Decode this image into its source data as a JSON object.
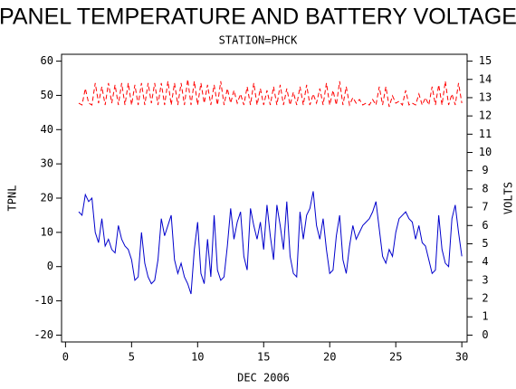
{
  "chart_data": {
    "type": "line",
    "title": "PANEL TEMPERATURE AND BATTERY VOLTAGE",
    "subtitle": "STATION=PHCK",
    "x_label": "DEC 2006",
    "y_label": "TPNL",
    "y2_label": "VOLTS",
    "xlim": [
      -0.3,
      30.4
    ],
    "xticks": [
      0,
      5,
      10,
      15,
      20,
      25,
      30
    ],
    "ylim": [
      -22,
      62
    ],
    "yticks": [
      -20,
      -10,
      0,
      10,
      20,
      30,
      40,
      50,
      60
    ],
    "y2lim": [
      -0.375,
      15.375
    ],
    "y2ticks": [
      0,
      1,
      2,
      3,
      4,
      5,
      6,
      7,
      8,
      9,
      10,
      11,
      12,
      13,
      14,
      15
    ],
    "x": [
      1,
      1.25,
      1.5,
      1.75,
      2,
      2.25,
      2.5,
      2.75,
      3,
      3.25,
      3.5,
      3.75,
      4,
      4.25,
      4.5,
      4.75,
      5,
      5.25,
      5.5,
      5.75,
      6,
      6.25,
      6.5,
      6.75,
      7,
      7.25,
      7.5,
      7.75,
      8,
      8.25,
      8.5,
      8.75,
      9,
      9.25,
      9.5,
      9.75,
      10,
      10.25,
      10.5,
      10.75,
      11,
      11.25,
      11.5,
      11.75,
      12,
      12.25,
      12.5,
      12.75,
      13,
      13.25,
      13.5,
      13.75,
      14,
      14.25,
      14.5,
      14.75,
      15,
      15.25,
      15.5,
      15.75,
      16,
      16.25,
      16.5,
      16.75,
      17,
      17.25,
      17.5,
      17.75,
      18,
      18.25,
      18.5,
      18.75,
      19,
      19.25,
      19.5,
      19.75,
      20,
      20.25,
      20.5,
      20.75,
      21,
      21.25,
      21.5,
      21.75,
      22,
      22.25,
      22.5,
      22.75,
      23,
      23.25,
      23.5,
      23.75,
      24,
      24.25,
      24.5,
      24.75,
      25,
      25.25,
      25.5,
      25.75,
      26,
      26.25,
      26.5,
      26.75,
      27,
      27.25,
      27.5,
      27.75,
      28,
      28.25,
      28.5,
      28.75,
      29,
      29.25,
      29.5,
      29.75,
      30
    ],
    "series": [
      {
        "color": "#0000cc",
        "axis": "y",
        "dash": false,
        "values": [
          16,
          15,
          21,
          19,
          20,
          10,
          7,
          14,
          6,
          8,
          5,
          4,
          12,
          8,
          6,
          5,
          2,
          -4,
          -3,
          10,
          1,
          -3,
          -5,
          -4,
          2,
          14,
          9,
          12,
          15,
          2,
          -2,
          1,
          -3,
          -5,
          -8,
          5,
          13,
          -2,
          -5,
          8,
          -3,
          15,
          -1,
          -4,
          -3,
          6,
          17,
          8,
          13,
          16,
          3,
          -1,
          17,
          12,
          8,
          13,
          5,
          18,
          9,
          2,
          18,
          12,
          5,
          19,
          3,
          -2,
          -3,
          16,
          8,
          15,
          17,
          22,
          12,
          8,
          14,
          5,
          -2,
          -1,
          9,
          15,
          2,
          -2,
          6,
          12,
          8,
          10,
          12,
          13,
          14,
          16,
          19,
          11,
          3,
          1,
          5,
          3,
          10,
          14,
          15,
          16,
          14,
          13,
          8,
          12,
          7,
          6,
          2,
          -2,
          -1,
          15,
          5,
          1,
          0,
          14,
          18,
          10,
          3
        ]
      },
      {
        "color": "#ff0000",
        "axis": "y2",
        "dash": true,
        "values": [
          12.7,
          12.6,
          13.5,
          12.7,
          12.6,
          13.8,
          12.7,
          13.6,
          12.6,
          13.8,
          12.7,
          13.7,
          12.6,
          13.8,
          12.6,
          13.8,
          12.6,
          13.7,
          12.6,
          13.8,
          12.6,
          13.8,
          12.7,
          13.8,
          12.6,
          13.8,
          12.6,
          13.9,
          12.6,
          13.8,
          12.6,
          13.8,
          12.6,
          14.0,
          12.6,
          13.9,
          12.6,
          13.8,
          12.7,
          13.7,
          12.6,
          13.7,
          12.6,
          13.9,
          12.6,
          13.5,
          12.7,
          13.4,
          12.7,
          13.2,
          12.6,
          13.6,
          12.6,
          13.8,
          12.6,
          13.5,
          12.6,
          13.4,
          12.6,
          13.6,
          12.6,
          13.7,
          12.6,
          13.5,
          12.6,
          13.3,
          12.6,
          13.6,
          12.6,
          13.7,
          12.6,
          13.2,
          12.7,
          13.5,
          12.6,
          13.8,
          12.6,
          13.4,
          12.6,
          13.9,
          12.6,
          13.6,
          12.6,
          13.0,
          12.7,
          12.9,
          12.6,
          12.7,
          12.6,
          12.9,
          12.6,
          13.6,
          12.6,
          13.6,
          12.5,
          13.1,
          12.7,
          12.8,
          12.6,
          13.4,
          12.6,
          12.7,
          12.6,
          13.2,
          12.6,
          13.0,
          12.6,
          13.6,
          12.6,
          13.7,
          12.6,
          13.9,
          12.6,
          13.2,
          12.6,
          13.8,
          12.7
        ]
      }
    ]
  }
}
